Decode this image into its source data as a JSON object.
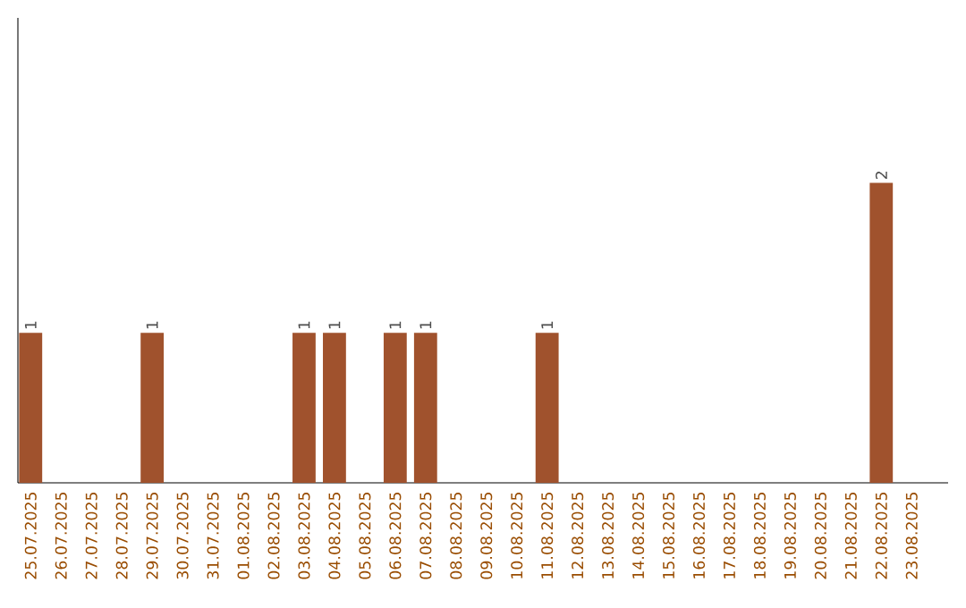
{
  "chart_data": {
    "type": "bar",
    "categories": [
      "25.07.2025",
      "26.07.2025",
      "27.07.2025",
      "28.07.2025",
      "29.07.2025",
      "30.07.2025",
      "31.07.2025",
      "01.08.2025",
      "02.08.2025",
      "03.08.2025",
      "04.08.2025",
      "05.08.2025",
      "06.08.2025",
      "07.08.2025",
      "08.08.2025",
      "09.08.2025",
      "10.08.2025",
      "11.08.2025",
      "12.08.2025",
      "13.08.2025",
      "14.08.2025",
      "15.08.2025",
      "16.08.2025",
      "17.08.2025",
      "18.08.2025",
      "19.08.2025",
      "20.08.2025",
      "21.08.2025",
      "22.08.2025",
      "23.08.2025"
    ],
    "values": [
      1,
      0,
      0,
      0,
      1,
      0,
      0,
      0,
      0,
      1,
      1,
      0,
      1,
      1,
      0,
      0,
      0,
      1,
      0,
      0,
      0,
      0,
      0,
      0,
      0,
      0,
      0,
      0,
      2,
      0
    ],
    "value_labels": [
      "1",
      null,
      null,
      null,
      "1",
      null,
      null,
      null,
      null,
      "1",
      "1",
      null,
      "1",
      "1",
      null,
      null,
      null,
      "1",
      null,
      null,
      null,
      null,
      null,
      null,
      null,
      null,
      null,
      null,
      "2",
      null
    ],
    "color": "#a0522d"
  }
}
